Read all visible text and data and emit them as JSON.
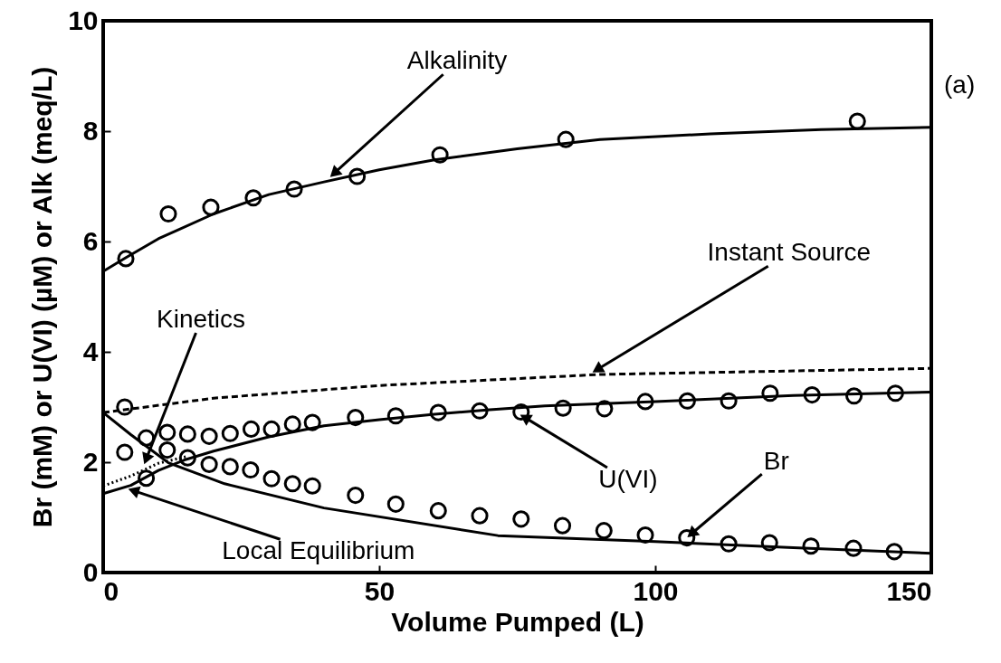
{
  "chart_data": {
    "type": "line",
    "xlabel": "Volume Pumped (L)",
    "ylabel": "Br (mM) or U(VI) (µM) or Alk (meq/L)",
    "xlim": [
      0,
      150
    ],
    "xticks": [
      0,
      50,
      100,
      150
    ],
    "ylim": [
      0,
      10
    ],
    "yticks": [
      0,
      2,
      4,
      6,
      8,
      10
    ],
    "grid": false,
    "series": [
      {
        "color": "#000000",
        "line_style": "solid",
        "x": [
          0,
          4,
          10,
          20,
          30,
          40,
          50,
          60,
          75,
          90,
          110,
          130,
          150
        ],
        "values": [
          5.46,
          5.7,
          6.05,
          6.5,
          6.85,
          7.08,
          7.3,
          7.48,
          7.68,
          7.85,
          7.95,
          8.03,
          8.07
        ]
      },
      {
        "type": "scatter",
        "color": "#000000",
        "marker": "circle",
        "x": [
          4.1,
          11.8,
          19.5,
          27.2,
          34.6,
          46,
          61,
          83.8,
          136.6
        ],
        "values": [
          5.69,
          6.5,
          6.62,
          6.79,
          6.95,
          7.18,
          7.57,
          7.85,
          8.18
        ]
      },
      {
        "color": "#000000",
        "line_style": "dashed",
        "x": [
          0,
          20,
          50,
          90,
          150
        ],
        "values": [
          2.9,
          3.16,
          3.39,
          3.59,
          3.7
        ]
      },
      {
        "color": "#000000",
        "line_style": "solid",
        "x": [
          0,
          5,
          10,
          15,
          20,
          30,
          40,
          50,
          60,
          70,
          80,
          100,
          125,
          150
        ],
        "values": [
          1.43,
          1.58,
          1.85,
          2.05,
          2.2,
          2.46,
          2.66,
          2.77,
          2.87,
          2.95,
          3.02,
          3.1,
          3.21,
          3.27
        ]
      },
      {
        "color": "#000000",
        "line_style": "dotted",
        "x": [
          0,
          5,
          10,
          15
        ],
        "values": [
          1.57,
          1.75,
          1.98,
          2.1
        ]
      },
      {
        "type": "scatter",
        "color": "#000000",
        "marker": "circle",
        "x": [
          3.9,
          7.8,
          11.6,
          15.3,
          19.2,
          23,
          26.8,
          30.5,
          34.3,
          37.9,
          45.7,
          53,
          60.7,
          68.2,
          75.7,
          83.3,
          90.8,
          98.2,
          105.8,
          113.3,
          120.8,
          128.4,
          136,
          143.5
        ],
        "values": [
          3.0,
          2.44,
          2.54,
          2.51,
          2.47,
          2.52,
          2.6,
          2.6,
          2.69,
          2.72,
          2.81,
          2.84,
          2.9,
          2.93,
          2.91,
          2.98,
          2.97,
          3.1,
          3.11,
          3.11,
          3.25,
          3.22,
          3.2,
          3.25
        ]
      },
      {
        "color": "#000000",
        "line_style": "solid",
        "x": [
          0,
          5,
          11.8,
          22,
          40,
          71.5,
          100,
          125,
          150
        ],
        "values": [
          2.9,
          2.5,
          1.99,
          1.61,
          1.17,
          0.67,
          0.56,
          0.45,
          0.35
        ]
      },
      {
        "type": "scatter",
        "color": "#000000",
        "marker": "circle",
        "x": [
          3.9,
          7.8,
          11.6,
          15.3,
          19.2,
          23,
          26.7,
          30.5,
          34.3,
          37.9,
          45.7,
          53,
          60.7,
          68.2,
          75.7,
          83.2,
          90.7,
          98.2,
          105.7,
          113.3,
          120.7,
          128.2,
          135.9,
          143.3
        ],
        "values": [
          2.18,
          1.71,
          2.22,
          2.08,
          1.96,
          1.92,
          1.86,
          1.7,
          1.61,
          1.57,
          1.4,
          1.24,
          1.12,
          1.03,
          0.97,
          0.85,
          0.76,
          0.68,
          0.63,
          0.52,
          0.54,
          0.48,
          0.44,
          0.38
        ]
      }
    ],
    "annotations": [
      {
        "text": "Alkalinity",
        "x": 41,
        "y": 7.16
      },
      {
        "text": "Instant Source",
        "x": 88.5,
        "y": 3.62
      },
      "Kinetics",
      {
        "text": "U(VI)",
        "x": 75.4,
        "y": 2.87
      },
      {
        "text": "Br",
        "x": 105.7,
        "y": 0.63
      },
      {
        "text": "Local Equilibrium",
        "x": 4.4,
        "y": 1.52
      },
      "(a)"
    ]
  }
}
